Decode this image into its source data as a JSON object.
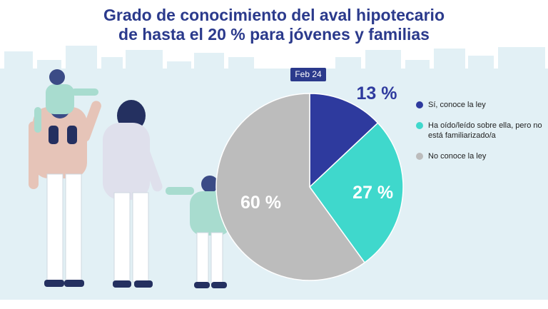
{
  "header": {
    "title_line1": "Grado de conocimiento del aval hipotecario",
    "title_line2": "de hasta el 20 % para jóvenes y familias"
  },
  "badge": {
    "period": "Feb 24"
  },
  "colors": {
    "skyline": "#e2f0f5",
    "badge_bg": "#2b3a8c",
    "title": "#2b3a8c"
  },
  "illustration": {
    "icon": "family-illustration"
  },
  "chart_data": {
    "type": "pie",
    "title": "",
    "period": "Feb 24",
    "start_angle_deg": 0,
    "direction": "clockwise",
    "slices": [
      {
        "label": "Sí, conoce la ley",
        "value": 13,
        "value_label": "13 %",
        "color": "#2e3a9e",
        "label_color": "#2e3a9e"
      },
      {
        "label": "Ha oído/leído sobre ella, pero no está familiarizado/a",
        "value": 27,
        "value_label": "27 %",
        "color": "#3fd8cc",
        "label_color": "#ffffff"
      },
      {
        "label": "No conoce la ley",
        "value": 60,
        "value_label": "60 %",
        "color": "#bcbcbc",
        "label_color": "#ffffff"
      }
    ],
    "legend": {
      "placement": "right",
      "entries": [
        "Sí, conoce la ley",
        "Ha oído/leído sobre ella, pero no está familiarizado/a",
        "No conoce la ley"
      ]
    }
  }
}
